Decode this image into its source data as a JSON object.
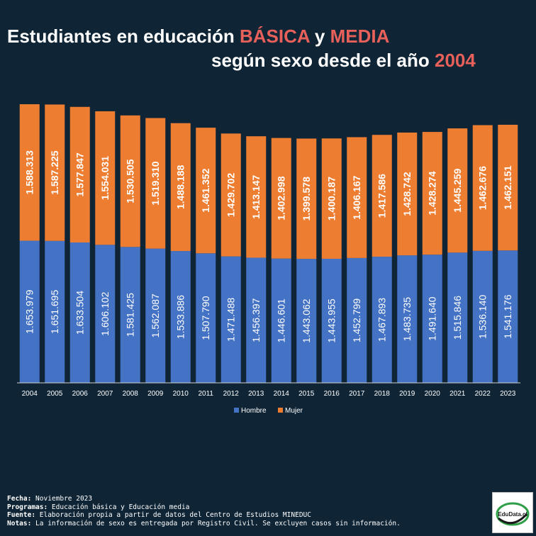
{
  "title": {
    "line1_pre": "Estudiantes en educación ",
    "line1_hl1": "BÁSICA",
    "line1_mid": " y ",
    "line1_hl2": "MEDIA",
    "line2_pre": "según sexo desde el año ",
    "line2_hl": "2004"
  },
  "colors": {
    "background": "#0f2536",
    "hombre": "#4472c4",
    "mujer": "#ed7d31",
    "highlight": "#e8605a"
  },
  "chart_data": {
    "type": "bar",
    "stacked": true,
    "categories": [
      "2004",
      "2005",
      "2006",
      "2007",
      "2008",
      "2009",
      "2010",
      "2011",
      "2012",
      "2013",
      "2014",
      "2015",
      "2016",
      "2017",
      "2018",
      "2019",
      "2020",
      "2021",
      "2022",
      "2023"
    ],
    "series": [
      {
        "name": "Hombre",
        "color": "#4472c4",
        "values": [
          1653979,
          1651695,
          1633504,
          1606102,
          1581425,
          1562087,
          1533886,
          1507790,
          1471488,
          1456397,
          1446601,
          1443062,
          1443955,
          1452799,
          1467893,
          1483735,
          1491640,
          1515846,
          1536140,
          1541176
        ],
        "labels": [
          "1.653.979",
          "1.651.695",
          "1.633.504",
          "1.606.102",
          "1.581.425",
          "1.562.087",
          "1.533.886",
          "1.507.790",
          "1.471.488",
          "1.456.397",
          "1.446.601",
          "1.443.062",
          "1.443.955",
          "1.452.799",
          "1.467.893",
          "1.483.735",
          "1.491.640",
          "1.515.846",
          "1.536.140",
          "1.541.176"
        ]
      },
      {
        "name": "Mujer",
        "color": "#ed7d31",
        "values": [
          1588313,
          1587225,
          1577847,
          1554031,
          1530505,
          1519310,
          1488188,
          1461352,
          1429702,
          1413147,
          1402998,
          1399578,
          1400187,
          1406167,
          1417586,
          1428742,
          1428274,
          1445259,
          1462676,
          1462151
        ],
        "labels": [
          "1.588.313",
          "1.587.225",
          "1.577.847",
          "1.554.031",
          "1.530.505",
          "1.519.310",
          "1.488.188",
          "1.461.352",
          "1.429.702",
          "1.413.147",
          "1.402.998",
          "1.399.578",
          "1.400.187",
          "1.406.167",
          "1.417.586",
          "1.428.742",
          "1.428.274",
          "1.445.259",
          "1.462.676",
          "1.462.151"
        ]
      }
    ],
    "legend": {
      "position": "bottom"
    },
    "grid": false,
    "ylim": [
      0,
      3300000
    ]
  },
  "footer": {
    "fecha_label": "Fecha:",
    "fecha": " Noviembre 2023",
    "programas_label": "Programas:",
    "programas": " Educación básica y Educación media",
    "fuente_label": "Fuente:",
    "fuente": " Elaboración propia a partir de datos del Centro de Estudios MINEDUC",
    "notas_label": "Notas:",
    "notas": " La información de sexo es entregada por Registro Civil. Se excluyen casos sin información."
  },
  "logo": {
    "text": "EduData.cl"
  }
}
